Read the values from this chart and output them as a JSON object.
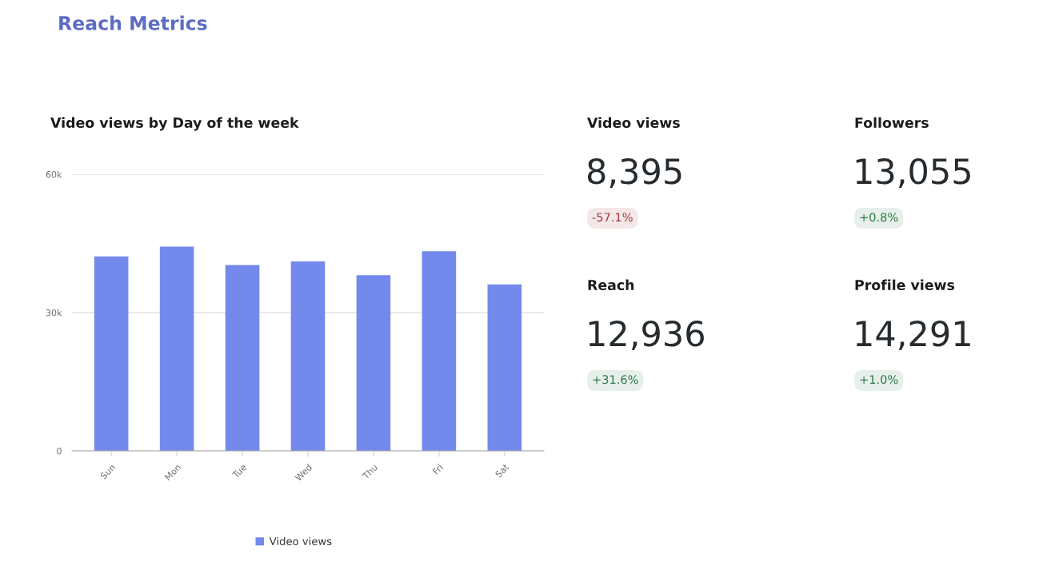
{
  "chart_data": [
    {
      "type": "bar",
      "title": "Reach Metrics",
      "subtitle": "Video views by Day of the week",
      "categories": [
        "Sun",
        "Mon",
        "Tue",
        "Wed",
        "Thu",
        "Fri",
        "Sat"
      ],
      "series": [
        {
          "name": "Video views",
          "color": "#7389eb",
          "values": [
            42200,
            44300,
            40300,
            41100,
            38100,
            43300,
            36100
          ]
        }
      ],
      "ylim": [
        0,
        60000
      ],
      "yticks": [
        0,
        {
          "value": 30000,
          "label": "30k"
        },
        {
          "value": 60000,
          "label": "60k"
        }
      ],
      "grid": "y",
      "legend": "bottom"
    },
    {
      "type": "other",
      "annotations": [
        "Video views",
        "8,395",
        "-57.1%",
        "Followers",
        "13,055",
        "+0.8%",
        "Reach",
        "12,936",
        "+31.6%",
        "Profile views",
        "14,291",
        "+1.0%"
      ],
      "colors": [
        "#a13a3a",
        "#2f7a45",
        "#2f7a45",
        "#2f7a45"
      ]
    }
  ]
}
